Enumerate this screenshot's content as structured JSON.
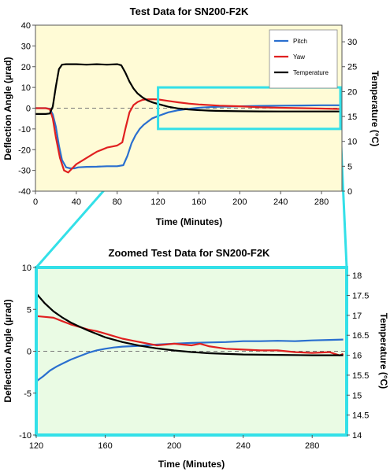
{
  "chart_data": [
    {
      "type": "line",
      "title": "Test Data for SN200-F2K",
      "xlabel": "Time (Minutes)",
      "ylabel": "Deflection Angle (µrad)",
      "y2label": "Temperature (°C)",
      "xlim": [
        0,
        300
      ],
      "ylim": [
        -40,
        40
      ],
      "y2lim": [
        0,
        33.3333
      ],
      "xticks": [
        0,
        40,
        80,
        120,
        160,
        200,
        240,
        280
      ],
      "yticks": [
        -40,
        -30,
        -20,
        -10,
        0,
        10,
        20,
        30,
        40
      ],
      "y2ticks": [
        0,
        5,
        10,
        15,
        20,
        25,
        30
      ],
      "grid": false,
      "legend": "top-right",
      "background": "#fffbd6",
      "series": [
        {
          "name": "Pitch",
          "color": "#2a6fcf",
          "axis": "left",
          "x": [
            0,
            10,
            14,
            17,
            20,
            23,
            26,
            30,
            34,
            38,
            42,
            50,
            60,
            70,
            80,
            86,
            90,
            94,
            98,
            102,
            106,
            110,
            114,
            120,
            130,
            140,
            150,
            160,
            170,
            180,
            200,
            220,
            240,
            260,
            280,
            300
          ],
          "y": [
            0,
            0,
            -0.3,
            -3,
            -9,
            -18,
            -25,
            -28.5,
            -29,
            -29,
            -28.5,
            -28.3,
            -28.2,
            -28,
            -28,
            -27.5,
            -23,
            -17,
            -13,
            -10,
            -8,
            -6.5,
            -5,
            -3.8,
            -2,
            -1,
            -0.3,
            0.2,
            0.5,
            0.7,
            0.9,
            1.1,
            1.2,
            1.3,
            1.4,
            1.4
          ]
        },
        {
          "name": "Yaw",
          "color": "#e02020",
          "axis": "left",
          "x": [
            0,
            10,
            14,
            17,
            20,
            24,
            28,
            32,
            36,
            40,
            45,
            50,
            55,
            60,
            65,
            70,
            75,
            80,
            85,
            88,
            92,
            96,
            100,
            105,
            110,
            115,
            120,
            130,
            140,
            150,
            160,
            180,
            200,
            220,
            240,
            260,
            280,
            300
          ],
          "y": [
            0,
            0,
            -0.5,
            -5,
            -14,
            -24,
            -30,
            -31,
            -29,
            -27,
            -25.5,
            -24,
            -22.5,
            -21,
            -20,
            -19,
            -18.5,
            -18,
            -16.5,
            -10,
            -2,
            1.5,
            3,
            4,
            4.3,
            4.3,
            4.2,
            3.5,
            2.8,
            2.2,
            1.8,
            1.2,
            0.9,
            0.4,
            0.2,
            0,
            -0.2,
            -0.4
          ]
        },
        {
          "name": "Temperature",
          "color": "#000000",
          "axis": "right",
          "x": [
            0,
            10,
            14,
            17,
            20,
            23,
            26,
            30,
            34,
            40,
            50,
            60,
            70,
            80,
            84,
            88,
            92,
            96,
            100,
            105,
            110,
            115,
            120,
            130,
            140,
            150,
            160,
            170,
            180,
            200,
            220,
            240,
            260,
            280,
            300
          ],
          "y": [
            15.5,
            15.5,
            15.6,
            17,
            21,
            24.5,
            25.4,
            25.5,
            25.5,
            25.5,
            25.4,
            25.5,
            25.4,
            25.5,
            25.3,
            23.8,
            22,
            20.6,
            19.6,
            18.8,
            18.2,
            17.8,
            17.5,
            16.95,
            16.6,
            16.4,
            16.27,
            16.18,
            16.12,
            16.05,
            16.02,
            16.01,
            16,
            16,
            16
          ]
        }
      ]
    },
    {
      "type": "line",
      "title": "Zoomed Test Data for SN200-F2K",
      "xlabel": "Time (Minutes)",
      "ylabel": "Deflection Angle (µrad)",
      "y2label": "Temperature (°C)",
      "xlim": [
        120,
        300
      ],
      "ylim": [
        -10,
        10
      ],
      "y2lim": [
        14,
        18.2
      ],
      "xticks": [
        120,
        160,
        200,
        240,
        280
      ],
      "yticks": [
        -10,
        -5,
        0,
        5,
        10
      ],
      "y2ticks": [
        14,
        14.5,
        15,
        15.5,
        16,
        16.5,
        17,
        17.5,
        18
      ],
      "grid": false,
      "background": "#eafbe4",
      "series": [
        {
          "name": "Pitch",
          "color": "#2a6fcf",
          "axis": "left",
          "x": [
            120,
            124,
            128,
            132,
            136,
            140,
            145,
            150,
            155,
            160,
            165,
            170,
            175,
            180,
            190,
            200,
            210,
            220,
            230,
            240,
            250,
            260,
            270,
            280,
            290,
            298
          ],
          "y": [
            -3.6,
            -3.0,
            -2.3,
            -1.8,
            -1.4,
            -1.0,
            -0.6,
            -0.2,
            0.1,
            0.3,
            0.45,
            0.55,
            0.6,
            0.65,
            0.8,
            0.9,
            1.0,
            1.05,
            1.1,
            1.2,
            1.2,
            1.25,
            1.2,
            1.3,
            1.35,
            1.4
          ]
        },
        {
          "name": "Yaw",
          "color": "#e02020",
          "axis": "left",
          "x": [
            120,
            125,
            130,
            135,
            140,
            145,
            150,
            155,
            160,
            165,
            170,
            175,
            180,
            185,
            190,
            195,
            200,
            205,
            210,
            215,
            220,
            230,
            240,
            250,
            260,
            270,
            280,
            290,
            296,
            298
          ],
          "y": [
            4.2,
            4.1,
            4.0,
            3.6,
            3.2,
            2.9,
            2.6,
            2.4,
            2.1,
            1.8,
            1.5,
            1.3,
            1.1,
            0.9,
            0.7,
            0.8,
            0.9,
            0.8,
            0.7,
            0.9,
            0.6,
            0.3,
            0.2,
            0.1,
            0.1,
            -0.1,
            -0.2,
            -0.1,
            -0.5,
            -0.3
          ]
        },
        {
          "name": "Temperature",
          "color": "#000000",
          "axis": "right",
          "x": [
            120,
            125,
            130,
            135,
            140,
            145,
            150,
            160,
            170,
            180,
            190,
            200,
            210,
            220,
            240,
            260,
            280,
            298
          ],
          "y": [
            17.55,
            17.3,
            17.1,
            16.95,
            16.82,
            16.72,
            16.62,
            16.45,
            16.33,
            16.24,
            16.17,
            16.12,
            16.08,
            16.05,
            16.02,
            16.01,
            16.0,
            16.0
          ]
        }
      ]
    }
  ]
}
